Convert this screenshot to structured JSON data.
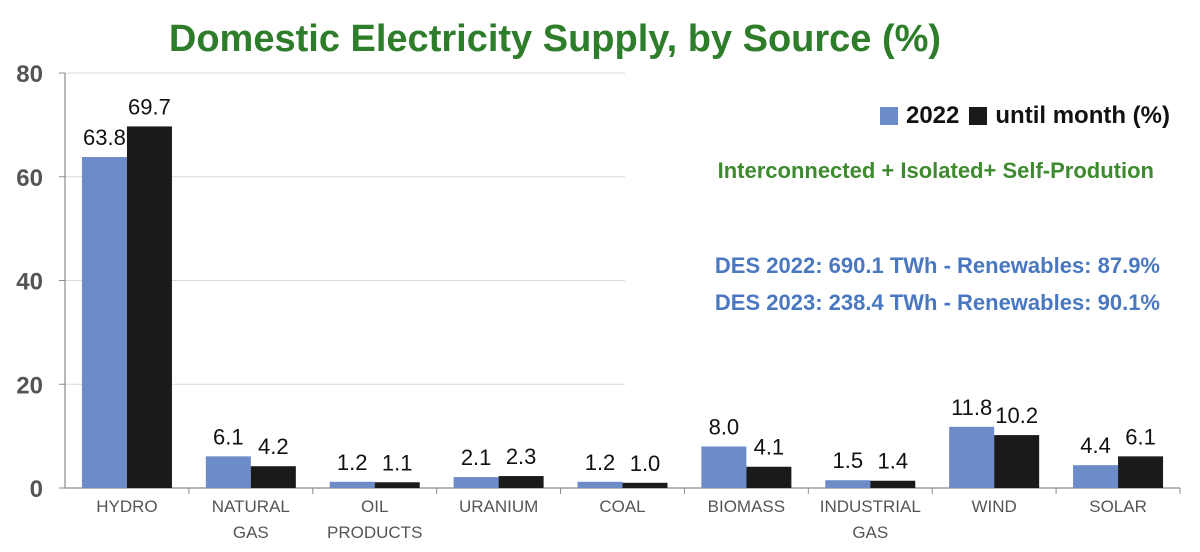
{
  "chart_data": {
    "type": "bar",
    "title": "Domestic Electricity Supply, by Source (%)",
    "categories": [
      [
        "HYDRO"
      ],
      [
        "NATURAL",
        "GAS"
      ],
      [
        "OIL",
        "PRODUCTS"
      ],
      [
        "URANIUM"
      ],
      [
        "COAL"
      ],
      [
        "BIOMASS"
      ],
      [
        "INDUSTRIAL",
        "GAS"
      ],
      [
        "WIND"
      ],
      [
        "SOLAR"
      ]
    ],
    "series": [
      {
        "name": "2022",
        "color": "#6d8bc6",
        "values": [
          63.8,
          6.1,
          1.2,
          2.1,
          1.2,
          8.0,
          1.5,
          11.8,
          4.4
        ]
      },
      {
        "name": "until month (%)",
        "color": "#1a1a1a",
        "values": [
          69.7,
          4.2,
          1.1,
          2.3,
          1.0,
          4.1,
          1.4,
          10.2,
          6.1
        ]
      }
    ],
    "ylim": [
      0,
      80
    ],
    "yticks": [
      0,
      20,
      40,
      60,
      80
    ],
    "xlabel": "",
    "ylabel": "",
    "grid": true,
    "legend_position": "top-right",
    "annotations": {
      "composition": "Interconnected + Isolated+  Self-Prodution",
      "des_2022": "DES 2022: 690.1 TWh - Renewables: 87.9%",
      "des_2023": "DES 2023: 238.4 TWh - Renewables: 90.1%"
    }
  }
}
